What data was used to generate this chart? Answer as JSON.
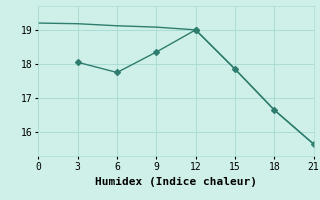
{
  "line1_x": [
    0,
    3,
    6,
    9,
    12,
    15,
    18,
    21
  ],
  "line1_y": [
    19.2,
    19.18,
    19.12,
    19.08,
    19.0,
    17.85,
    16.65,
    15.65
  ],
  "line2_x": [
    3,
    6,
    9,
    12,
    15,
    18,
    21
  ],
  "line2_y": [
    18.05,
    17.75,
    18.35,
    19.0,
    17.85,
    16.65,
    15.65
  ],
  "line1_marker_x": [
    12
  ],
  "line1_marker_y": [
    19.0
  ],
  "color": "#2e7d6e",
  "bg_color": "#cff0e8",
  "grid_color": "#aaddd4",
  "xlabel": "Humidex (Indice chaleur)",
  "xlim": [
    0,
    21
  ],
  "ylim": [
    15.3,
    19.7
  ],
  "xticks": [
    0,
    3,
    6,
    9,
    12,
    15,
    18,
    21
  ],
  "yticks": [
    16,
    17,
    18,
    19
  ],
  "marker": "D",
  "markersize": 3,
  "linewidth": 1.0,
  "font_family": "monospace",
  "xlabel_fontsize": 8,
  "tick_fontsize": 7
}
